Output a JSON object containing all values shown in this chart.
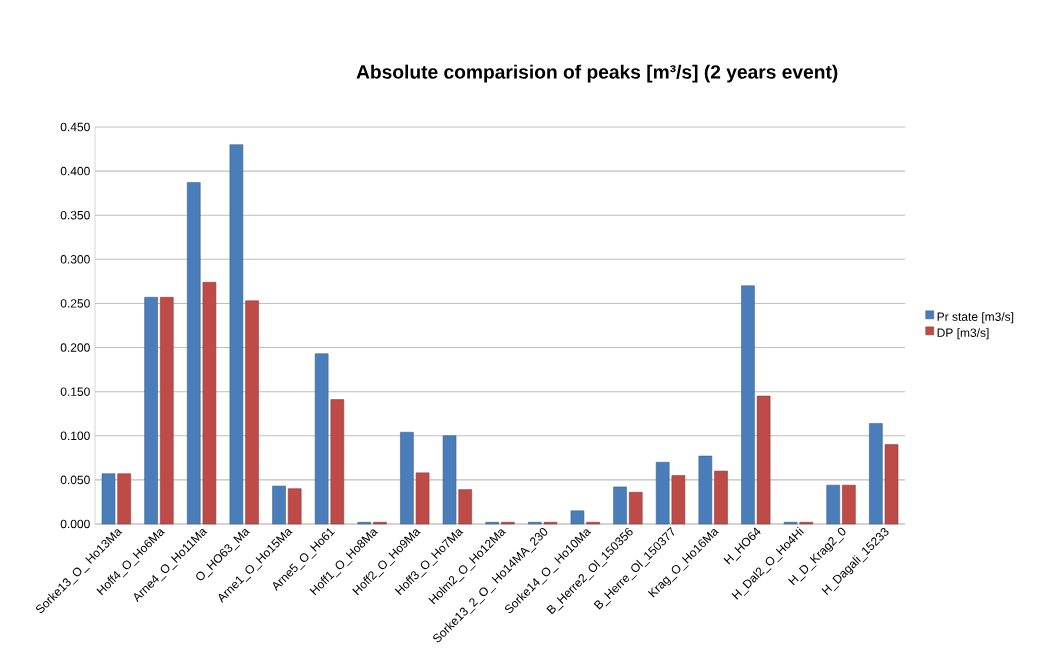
{
  "chart_data": {
    "type": "bar",
    "title": "Absolute comparision of peaks [m³/s]  (2 years event)",
    "categories": [
      "Sorke13_O_ Ho13Ma",
      "Hoff4_O_Ho6Ma",
      "Arne4_O_Ho11Ma",
      "O_HO63_Ma",
      "Arne1_O_Ho15Ma",
      "Arne5_O_Ho61",
      "Hoff1_O_Ho8Ma",
      "Hoff2_O_Ho9Ma",
      "Hoff3_O_Ho7Ma",
      "Holm2_O_Ho12Ma",
      "Sorke13_2_O_ Ho14MA_230",
      "Sorke14_O_ Ho10Ma",
      "B_Herre2_Ol_150356",
      "B_Herre_Ol_150377",
      "Krag_O_Ho16Ma",
      "H_HO64",
      "H_Dal2_O_Ho4Hi",
      "H_D_Krag2_0",
      "H_Dagali_15233"
    ],
    "series": [
      {
        "name": "Pr state [m3/s]",
        "color": "#4a7ebb",
        "values": [
          0.057,
          0.257,
          0.387,
          0.43,
          0.043,
          0.193,
          0.002,
          0.104,
          0.1,
          0.002,
          0.002,
          0.015,
          0.042,
          0.07,
          0.077,
          0.27,
          0.002,
          0.044,
          0.114
        ]
      },
      {
        "name": "DP [m3/s]",
        "color": "#be4b48",
        "values": [
          0.057,
          0.257,
          0.274,
          0.253,
          0.04,
          0.141,
          0.002,
          0.058,
          0.039,
          0.002,
          0.002,
          0.002,
          0.036,
          0.055,
          0.06,
          0.145,
          0.002,
          0.044,
          0.09
        ]
      }
    ],
    "ylim": [
      0,
      0.45
    ],
    "yticks": [
      {
        "value": 0,
        "label": "0.000"
      },
      {
        "value": 0.05,
        "label": "0.050"
      },
      {
        "value": 0.1,
        "label": "0.100"
      },
      {
        "value": 0.15,
        "label": "0.150"
      },
      {
        "value": 0.2,
        "label": "0.200"
      },
      {
        "value": 0.25,
        "label": "0.250"
      },
      {
        "value": 0.3,
        "label": "0.300"
      },
      {
        "value": 0.35,
        "label": "0.350"
      },
      {
        "value": 0.4,
        "label": "0.400"
      },
      {
        "value": 0.45,
        "label": "0.450"
      }
    ],
    "grid": "y",
    "legend": "right"
  }
}
